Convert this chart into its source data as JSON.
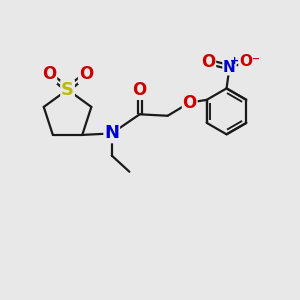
{
  "background_color": "#e8e8e8",
  "bond_color": "#1a1a1a",
  "bond_width": 1.6,
  "atom_colors": {
    "S": "#bbbb00",
    "N": "#0000cc",
    "O": "#cc0000",
    "C": "#1a1a1a"
  },
  "font_size_atoms": 11,
  "figsize": [
    3.0,
    3.0
  ],
  "dpi": 100
}
